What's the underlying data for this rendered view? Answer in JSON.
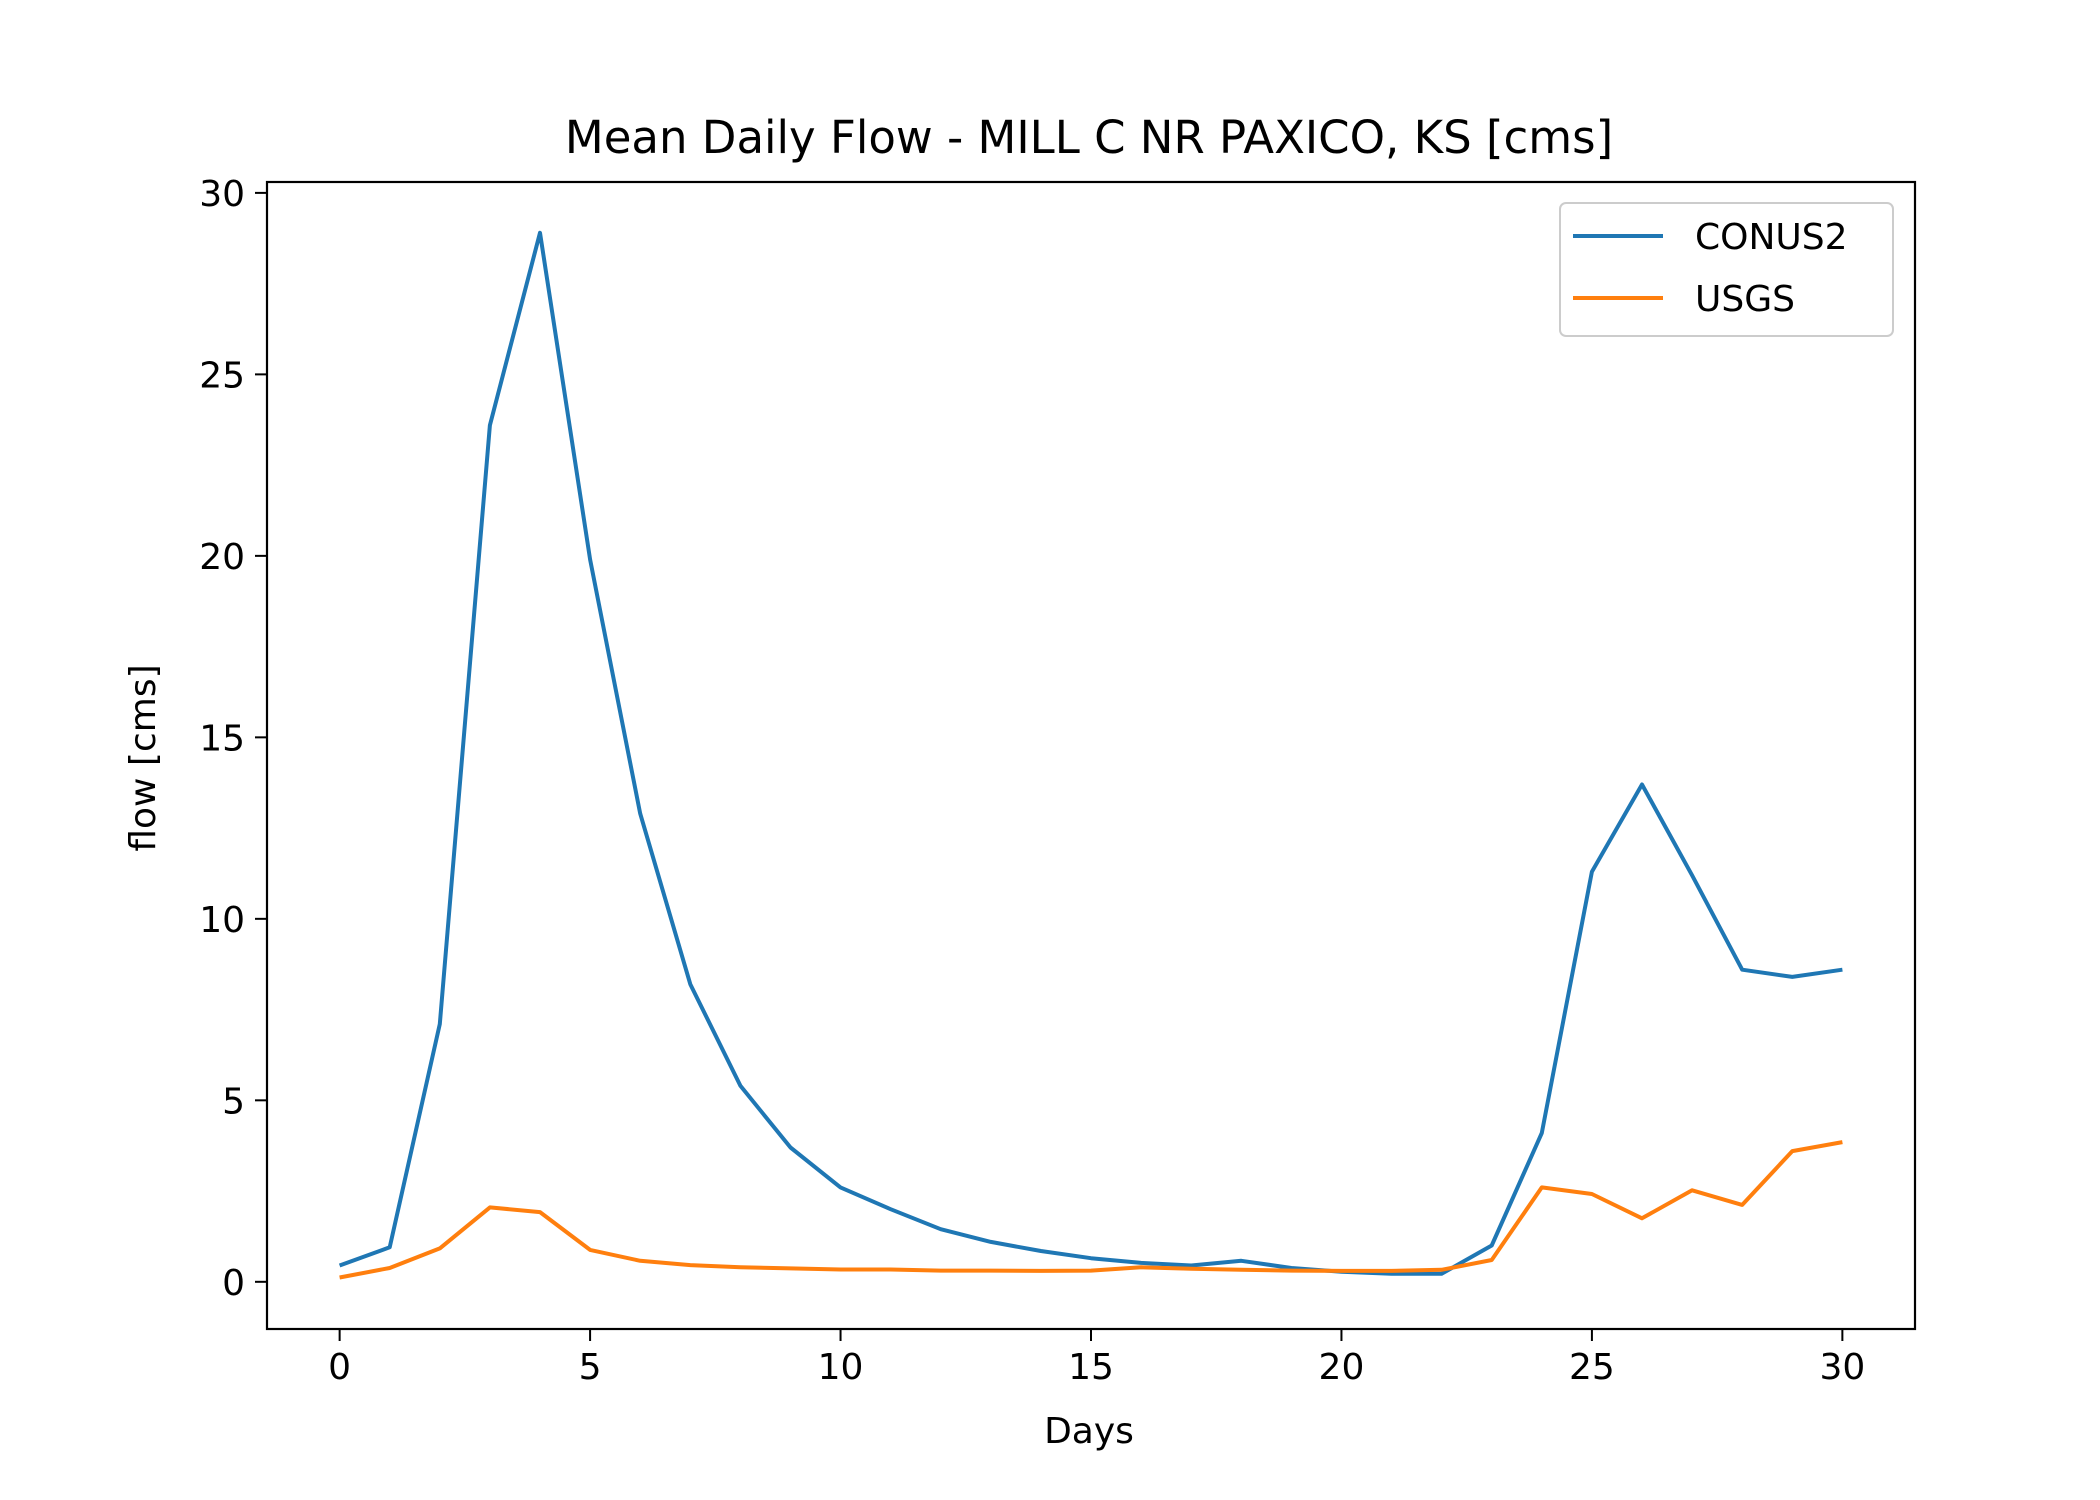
{
  "chart_data": {
    "type": "line",
    "title": "Mean Daily Flow - MILL C NR PAXICO, KS [cms]",
    "xlabel": "Days",
    "ylabel": "flow [cms]",
    "xlim": [
      -1.45,
      31.45
    ],
    "ylim": [
      -1.3,
      30.3
    ],
    "xticks": [
      0,
      5,
      10,
      15,
      20,
      25,
      30
    ],
    "yticks": [
      0,
      5,
      10,
      15,
      20,
      25,
      30
    ],
    "grid": false,
    "legend_position": "top-right",
    "x": [
      0,
      1,
      2,
      3,
      4,
      5,
      6,
      7,
      8,
      9,
      10,
      11,
      12,
      13,
      14,
      15,
      16,
      17,
      18,
      19,
      20,
      21,
      22,
      23,
      24,
      25,
      26,
      27,
      28,
      29,
      30
    ],
    "series": [
      {
        "name": "CONUS2",
        "color": "#1f77b4",
        "values": [
          0.45,
          0.95,
          7.1,
          23.6,
          28.9,
          19.9,
          12.9,
          8.2,
          5.4,
          3.7,
          2.6,
          2.0,
          1.45,
          1.1,
          0.85,
          0.65,
          0.52,
          0.45,
          0.58,
          0.38,
          0.28,
          0.22,
          0.22,
          1.0,
          4.1,
          11.3,
          13.7,
          11.2,
          8.6,
          8.4,
          8.6
        ]
      },
      {
        "name": "USGS",
        "color": "#ff7f0e",
        "values": [
          0.12,
          0.38,
          0.92,
          2.05,
          1.92,
          0.88,
          0.58,
          0.46,
          0.4,
          0.37,
          0.34,
          0.34,
          0.31,
          0.31,
          0.3,
          0.31,
          0.4,
          0.36,
          0.33,
          0.31,
          0.3,
          0.3,
          0.33,
          0.6,
          2.6,
          2.42,
          1.75,
          2.52,
          2.12,
          3.6,
          3.85
        ]
      }
    ]
  }
}
